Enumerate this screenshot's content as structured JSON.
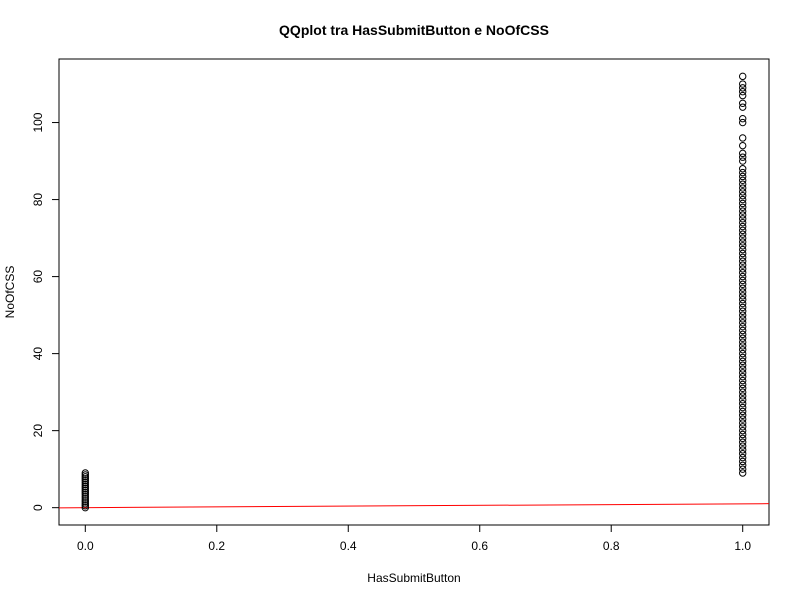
{
  "chart_data": {
    "type": "scatter",
    "title": "QQplot tra HasSubmitButton e NoOfCSS",
    "xlabel": "HasSubmitButton",
    "ylabel": "NoOfCSS",
    "xlim": [
      -0.04,
      1.04
    ],
    "ylim": [
      -4.5,
      116.5
    ],
    "x_ticks": [
      0.0,
      0.2,
      0.4,
      0.6,
      0.8,
      1.0
    ],
    "x_tick_labels": [
      "0.0",
      "0.2",
      "0.4",
      "0.6",
      "0.8",
      "1.0"
    ],
    "y_ticks": [
      0,
      20,
      40,
      60,
      80,
      100
    ],
    "y_tick_labels": [
      "0",
      "20",
      "40",
      "60",
      "80",
      "100"
    ],
    "grid": false,
    "series": [
      {
        "marker": "open-circle",
        "color": "#000000",
        "points": [
          {
            "x": 0,
            "y": 0
          },
          {
            "x": 0,
            "y": 0.5
          },
          {
            "x": 0,
            "y": 1
          },
          {
            "x": 0,
            "y": 1.5
          },
          {
            "x": 0,
            "y": 2
          },
          {
            "x": 0,
            "y": 2.5
          },
          {
            "x": 0,
            "y": 3
          },
          {
            "x": 0,
            "y": 3.5
          },
          {
            "x": 0,
            "y": 4
          },
          {
            "x": 0,
            "y": 4.5
          },
          {
            "x": 0,
            "y": 5
          },
          {
            "x": 0,
            "y": 5.5
          },
          {
            "x": 0,
            "y": 6
          },
          {
            "x": 0,
            "y": 6.5
          },
          {
            "x": 0,
            "y": 7
          },
          {
            "x": 0,
            "y": 7.5
          },
          {
            "x": 0,
            "y": 8
          },
          {
            "x": 0,
            "y": 8.5
          },
          {
            "x": 0,
            "y": 9
          },
          {
            "x": 1,
            "y": 9
          },
          {
            "x": 1,
            "y": 10
          },
          {
            "x": 1,
            "y": 11
          },
          {
            "x": 1,
            "y": 12
          },
          {
            "x": 1,
            "y": 13
          },
          {
            "x": 1,
            "y": 14
          },
          {
            "x": 1,
            "y": 15
          },
          {
            "x": 1,
            "y": 16
          },
          {
            "x": 1,
            "y": 17
          },
          {
            "x": 1,
            "y": 18
          },
          {
            "x": 1,
            "y": 19
          },
          {
            "x": 1,
            "y": 20
          },
          {
            "x": 1,
            "y": 21
          },
          {
            "x": 1,
            "y": 22
          },
          {
            "x": 1,
            "y": 23
          },
          {
            "x": 1,
            "y": 24
          },
          {
            "x": 1,
            "y": 25
          },
          {
            "x": 1,
            "y": 26
          },
          {
            "x": 1,
            "y": 27
          },
          {
            "x": 1,
            "y": 28
          },
          {
            "x": 1,
            "y": 29
          },
          {
            "x": 1,
            "y": 30
          },
          {
            "x": 1,
            "y": 31
          },
          {
            "x": 1,
            "y": 32
          },
          {
            "x": 1,
            "y": 33
          },
          {
            "x": 1,
            "y": 34
          },
          {
            "x": 1,
            "y": 35
          },
          {
            "x": 1,
            "y": 36
          },
          {
            "x": 1,
            "y": 37
          },
          {
            "x": 1,
            "y": 38
          },
          {
            "x": 1,
            "y": 39
          },
          {
            "x": 1,
            "y": 40
          },
          {
            "x": 1,
            "y": 41
          },
          {
            "x": 1,
            "y": 42
          },
          {
            "x": 1,
            "y": 43
          },
          {
            "x": 1,
            "y": 44
          },
          {
            "x": 1,
            "y": 45
          },
          {
            "x": 1,
            "y": 46
          },
          {
            "x": 1,
            "y": 47
          },
          {
            "x": 1,
            "y": 48
          },
          {
            "x": 1,
            "y": 49
          },
          {
            "x": 1,
            "y": 50
          },
          {
            "x": 1,
            "y": 51
          },
          {
            "x": 1,
            "y": 52
          },
          {
            "x": 1,
            "y": 53
          },
          {
            "x": 1,
            "y": 54
          },
          {
            "x": 1,
            "y": 55
          },
          {
            "x": 1,
            "y": 56
          },
          {
            "x": 1,
            "y": 57
          },
          {
            "x": 1,
            "y": 58
          },
          {
            "x": 1,
            "y": 59
          },
          {
            "x": 1,
            "y": 60
          },
          {
            "x": 1,
            "y": 61
          },
          {
            "x": 1,
            "y": 62
          },
          {
            "x": 1,
            "y": 63
          },
          {
            "x": 1,
            "y": 64
          },
          {
            "x": 1,
            "y": 65
          },
          {
            "x": 1,
            "y": 66
          },
          {
            "x": 1,
            "y": 67
          },
          {
            "x": 1,
            "y": 68
          },
          {
            "x": 1,
            "y": 69
          },
          {
            "x": 1,
            "y": 70
          },
          {
            "x": 1,
            "y": 71
          },
          {
            "x": 1,
            "y": 72
          },
          {
            "x": 1,
            "y": 73
          },
          {
            "x": 1,
            "y": 74
          },
          {
            "x": 1,
            "y": 75
          },
          {
            "x": 1,
            "y": 76
          },
          {
            "x": 1,
            "y": 77
          },
          {
            "x": 1,
            "y": 78
          },
          {
            "x": 1,
            "y": 79
          },
          {
            "x": 1,
            "y": 80
          },
          {
            "x": 1,
            "y": 81
          },
          {
            "x": 1,
            "y": 82
          },
          {
            "x": 1,
            "y": 83
          },
          {
            "x": 1,
            "y": 84
          },
          {
            "x": 1,
            "y": 85
          },
          {
            "x": 1,
            "y": 86
          },
          {
            "x": 1,
            "y": 87
          },
          {
            "x": 1,
            "y": 88
          },
          {
            "x": 1,
            "y": 90
          },
          {
            "x": 1,
            "y": 91
          },
          {
            "x": 1,
            "y": 92
          },
          {
            "x": 1,
            "y": 94
          },
          {
            "x": 1,
            "y": 96
          },
          {
            "x": 1,
            "y": 100
          },
          {
            "x": 1,
            "y": 101
          },
          {
            "x": 1,
            "y": 104
          },
          {
            "x": 1,
            "y": 105
          },
          {
            "x": 1,
            "y": 107
          },
          {
            "x": 1,
            "y": 108
          },
          {
            "x": 1,
            "y": 109
          },
          {
            "x": 1,
            "y": 110
          },
          {
            "x": 1,
            "y": 112
          }
        ]
      }
    ],
    "reference_line": {
      "color": "#ff0000",
      "from": {
        "x": -0.04,
        "y": -0.04
      },
      "to": {
        "x": 1.04,
        "y": 1.04
      }
    }
  }
}
